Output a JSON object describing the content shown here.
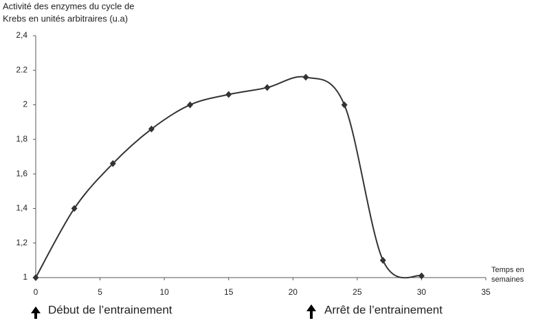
{
  "chart_data": {
    "type": "line",
    "y_label": [
      "Activité des enzymes du cycle de",
      "Krebs en unités arbitraires (u.a)"
    ],
    "x_label": [
      "Temps en",
      "semaines"
    ],
    "annotations": [
      "Début de l’entrainement",
      "Arrêt de l’entrainement"
    ],
    "x": [
      0,
      3,
      6,
      9,
      12,
      15,
      18,
      21,
      24,
      27,
      30
    ],
    "series": [
      {
        "color": "#333333",
        "values": [
          1,
          1.4,
          1.66,
          1.86,
          2.0,
          2.06,
          2.1,
          2.16,
          2.0,
          1.1,
          1.01
        ]
      }
    ],
    "xlim": [
      0,
      35
    ],
    "xticks": [
      0,
      5,
      10,
      15,
      20,
      25,
      30,
      35
    ],
    "ylim": [
      1,
      2.4
    ],
    "yticks": [
      1,
      {
        "value": 1.2,
        "label": "1,2"
      },
      {
        "value": 1.4,
        "label": "1,4"
      },
      {
        "value": 1.6,
        "label": "1,6"
      },
      {
        "value": 1.8,
        "label": "1,8"
      },
      2,
      2.2,
      {
        "value": 2.4,
        "label": "2,4"
      }
    ],
    "smooth": true,
    "grid": false
  }
}
